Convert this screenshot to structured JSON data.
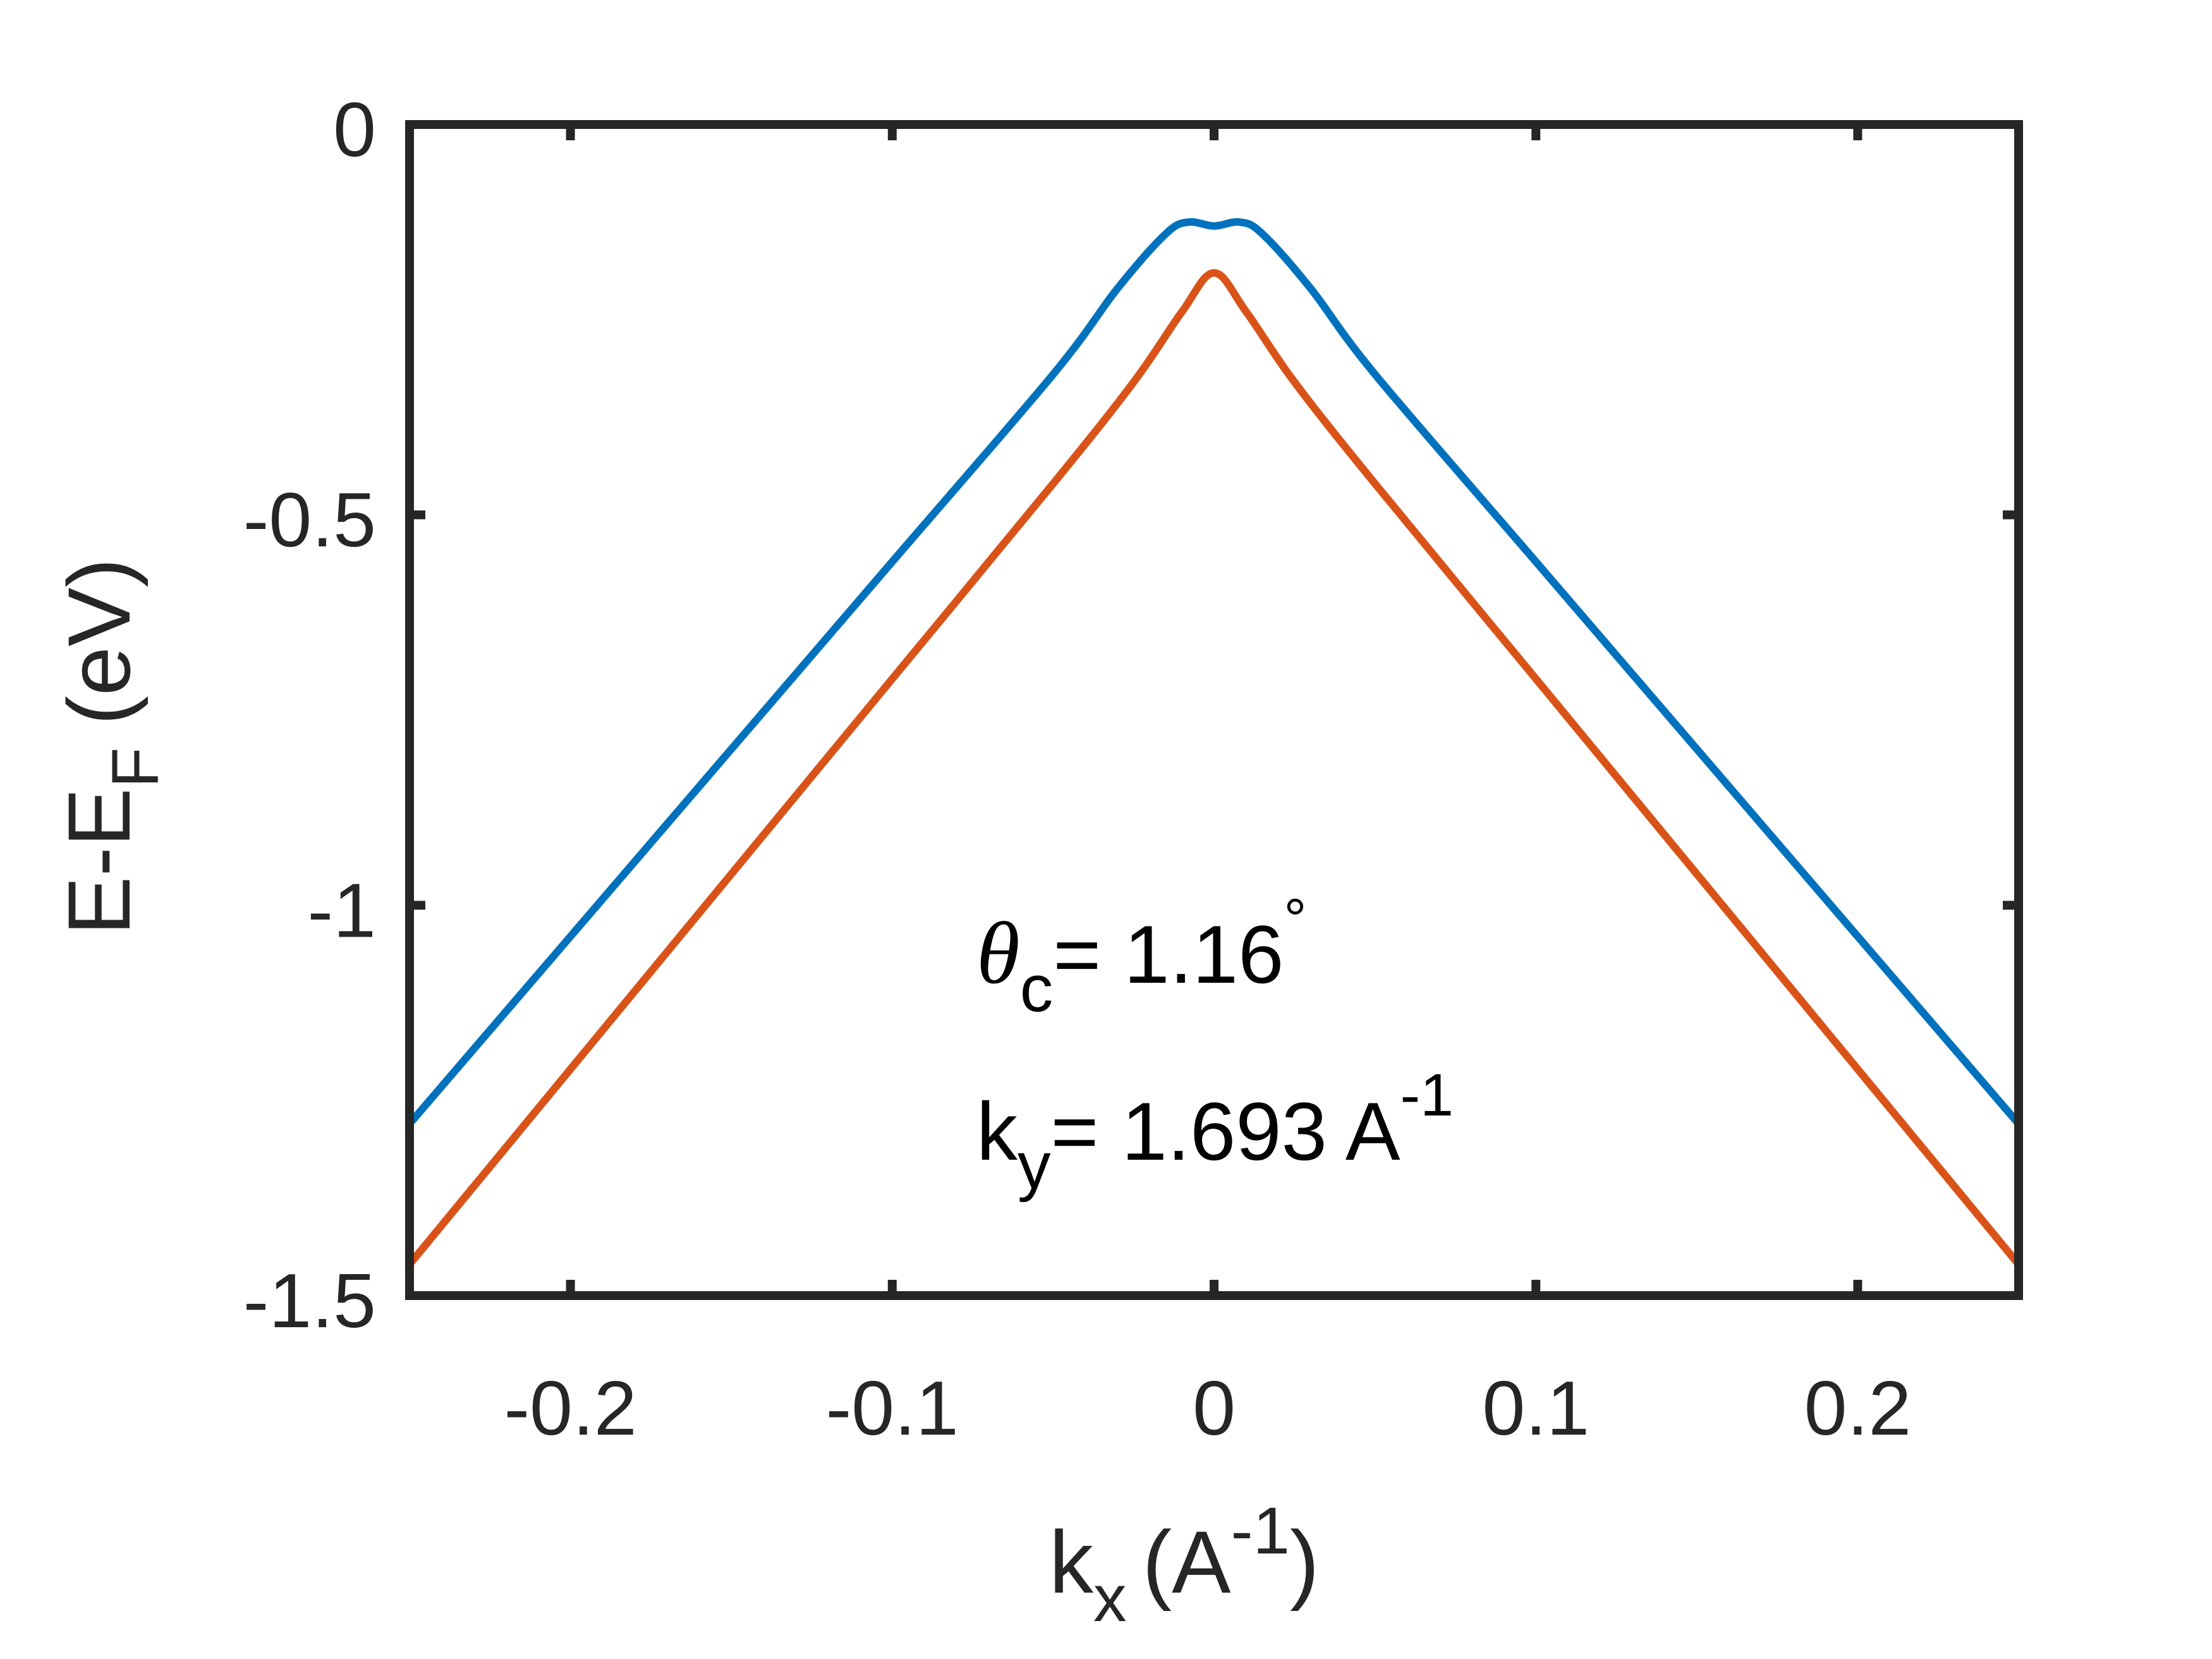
{
  "chart_data": {
    "type": "line",
    "xlabel": {
      "main": "k",
      "sub": "x",
      "unit_open": "(A",
      "sup": "-1",
      "unit_close": ")"
    },
    "ylabel": {
      "main": "E-E",
      "sub": "F",
      "unit": "(eV)"
    },
    "xlim": [
      -0.25,
      0.25
    ],
    "ylim": [
      -1.5,
      0
    ],
    "xticks": [
      -0.2,
      -0.1,
      0,
      0.1,
      0.2
    ],
    "xtick_labels": [
      "-0.2",
      "-0.1",
      "0",
      "0.1",
      "0.2"
    ],
    "yticks": [
      0,
      -0.5,
      -1,
      -1.5
    ],
    "ytick_labels": [
      "0",
      "-0.5",
      "-1",
      "-1.5"
    ],
    "grid": false,
    "series": [
      {
        "color": "#0072BD",
        "x": [
          -0.25,
          -0.2,
          -0.15,
          -0.1,
          -0.05,
          -0.03,
          -0.015,
          -0.008,
          0,
          0.008,
          0.015,
          0.03,
          0.05,
          0.1,
          0.15,
          0.2,
          0.25
        ],
        "y": [
          -1.28,
          -1.04,
          -0.8,
          -0.56,
          -0.32,
          -0.21,
          -0.14,
          -0.125,
          -0.13,
          -0.125,
          -0.14,
          -0.21,
          -0.32,
          -0.56,
          -0.8,
          -1.04,
          -1.28
        ]
      },
      {
        "color": "#D95319",
        "x": [
          -0.25,
          -0.2,
          -0.15,
          -0.1,
          -0.05,
          -0.025,
          -0.01,
          0,
          0.01,
          0.025,
          0.05,
          0.1,
          0.15,
          0.2,
          0.25
        ],
        "y": [
          -1.46,
          -1.21,
          -0.96,
          -0.71,
          -0.46,
          -0.33,
          -0.24,
          -0.19,
          -0.24,
          -0.33,
          -0.46,
          -0.71,
          -0.96,
          -1.21,
          -1.46
        ]
      }
    ],
    "annotations": {
      "line1": {
        "symbol": "θ",
        "sub": "c",
        "text": "= 1.16",
        "sup": "°"
      },
      "line2": {
        "main": "k",
        "sub": "y",
        "text": "= 1.693 A",
        "sup": "-1"
      }
    }
  }
}
